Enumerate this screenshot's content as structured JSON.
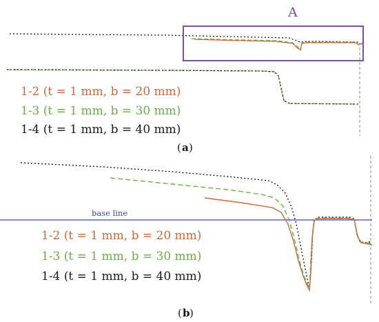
{
  "colors": {
    "series_1_2": "#c8693a",
    "series_1_3": "#6aae45",
    "series_1_4": "#1a1a1a",
    "box": "#7a4ea6",
    "base_line": "#3a47a0",
    "vline": "#8a8a8a"
  },
  "chart_data": [
    {
      "panel": "a",
      "type": "line",
      "caption_letter": "a",
      "box_label": "A",
      "legend": [
        {
          "key": "s12",
          "label": "1-2 (t = 1 mm, b = 20 mm)"
        },
        {
          "key": "s13",
          "label": "1-3 (t = 1 mm, b = 30 mm)"
        },
        {
          "key": "s14",
          "label": "1-4 (t = 1 mm, b = 40 mm)"
        }
      ],
      "title": "",
      "xlabel": "",
      "ylabel": ""
    },
    {
      "panel": "b",
      "type": "line",
      "caption_letter": "b",
      "base_line_label": "base line",
      "legend": [
        {
          "key": "s12",
          "label": "1-2 (t = 1 mm, b = 20 mm)"
        },
        {
          "key": "s13",
          "label": "1-3 (t = 1 mm, b = 30 mm)"
        },
        {
          "key": "s14",
          "label": "1-4 (t = 1 mm, b = 40 mm)"
        }
      ],
      "title": "",
      "xlabel": "",
      "ylabel": ""
    }
  ]
}
